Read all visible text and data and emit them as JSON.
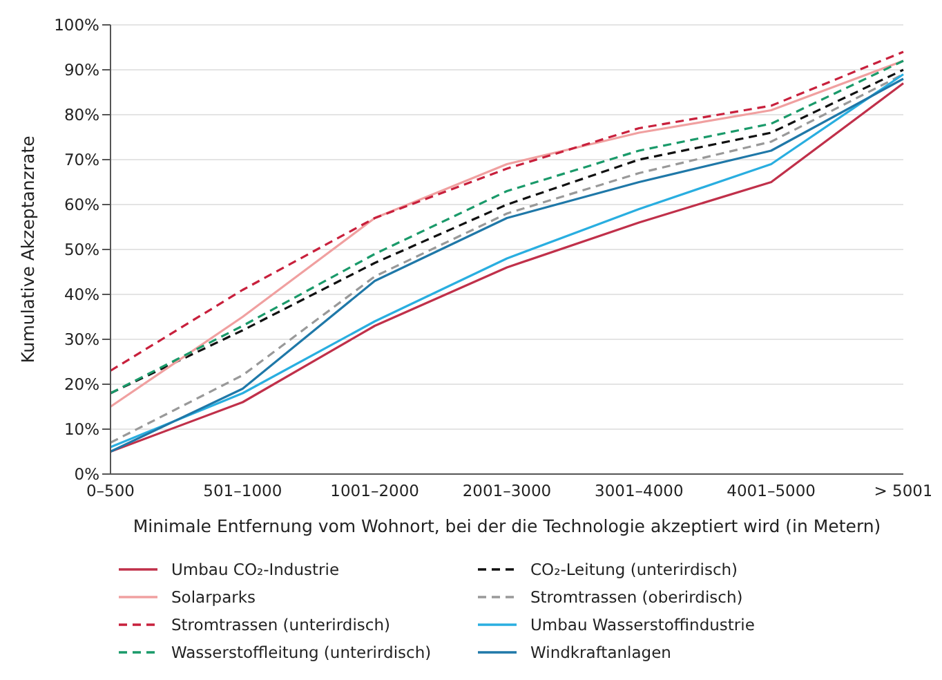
{
  "chart_data": {
    "type": "line",
    "xlabel": "Minimale Entfernung vom Wohnort, bei der die Technologie akzeptiert wird (in Metern)",
    "ylabel": "Kumulative Akzeptanzrate",
    "categories": [
      "0–500",
      "501–1000",
      "1001–2000",
      "2001–3000",
      "3001–4000",
      "4001–5000",
      "> 5001"
    ],
    "ylim": [
      0,
      100
    ],
    "yticks": [
      {
        "value": 0,
        "label": "0%"
      },
      {
        "value": 10,
        "label": "10%"
      },
      {
        "value": 20,
        "label": "20%"
      },
      {
        "value": 30,
        "label": "30%"
      },
      {
        "value": 40,
        "label": "40%"
      },
      {
        "value": 50,
        "label": "50%"
      },
      {
        "value": 60,
        "label": "60%"
      },
      {
        "value": 70,
        "label": "70%"
      },
      {
        "value": 80,
        "label": "80%"
      },
      {
        "value": 90,
        "label": "90%"
      },
      {
        "value": 100,
        "label": "100%"
      }
    ],
    "grid": "y",
    "legend": "bottom",
    "marker": "none",
    "series": [
      {
        "name": "Umbau CO₂-Industrie",
        "color": "#c0304a",
        "line_style": "solid",
        "values": [
          5,
          16,
          33,
          46,
          56,
          65,
          87
        ]
      },
      {
        "name": "CO₂-Leitung (unterirdisch)",
        "color": "#111111",
        "line_style": "dashed",
        "values": [
          18,
          32,
          47,
          60,
          70,
          76,
          90
        ]
      },
      {
        "name": "Solarparks",
        "color": "#f0a0a0",
        "line_style": "solid",
        "values": [
          15,
          35,
          57,
          69,
          76,
          81,
          92
        ]
      },
      {
        "name": "Stromtrassen (oberirdisch)",
        "color": "#999999",
        "line_style": "dashed",
        "values": [
          7,
          22,
          44,
          58,
          67,
          74,
          89
        ]
      },
      {
        "name": "Stromtrassen (unterirdisch)",
        "color": "#c8203c",
        "line_style": "dashed",
        "values": [
          23,
          41,
          57,
          68,
          77,
          82,
          94
        ]
      },
      {
        "name": "Umbau Wasserstoffindustrie",
        "color": "#29aee0",
        "line_style": "solid",
        "values": [
          6,
          18,
          34,
          48,
          59,
          69,
          89
        ]
      },
      {
        "name": "Wasserstoffleitung (unterirdisch)",
        "color": "#1a9a6a",
        "line_style": "dashed",
        "values": [
          18,
          33,
          49,
          63,
          72,
          78,
          92
        ]
      },
      {
        "name": "Windkraftanlagen",
        "color": "#1f78a8",
        "line_style": "solid",
        "values": [
          5,
          19,
          43,
          57,
          65,
          72,
          88
        ]
      }
    ]
  }
}
